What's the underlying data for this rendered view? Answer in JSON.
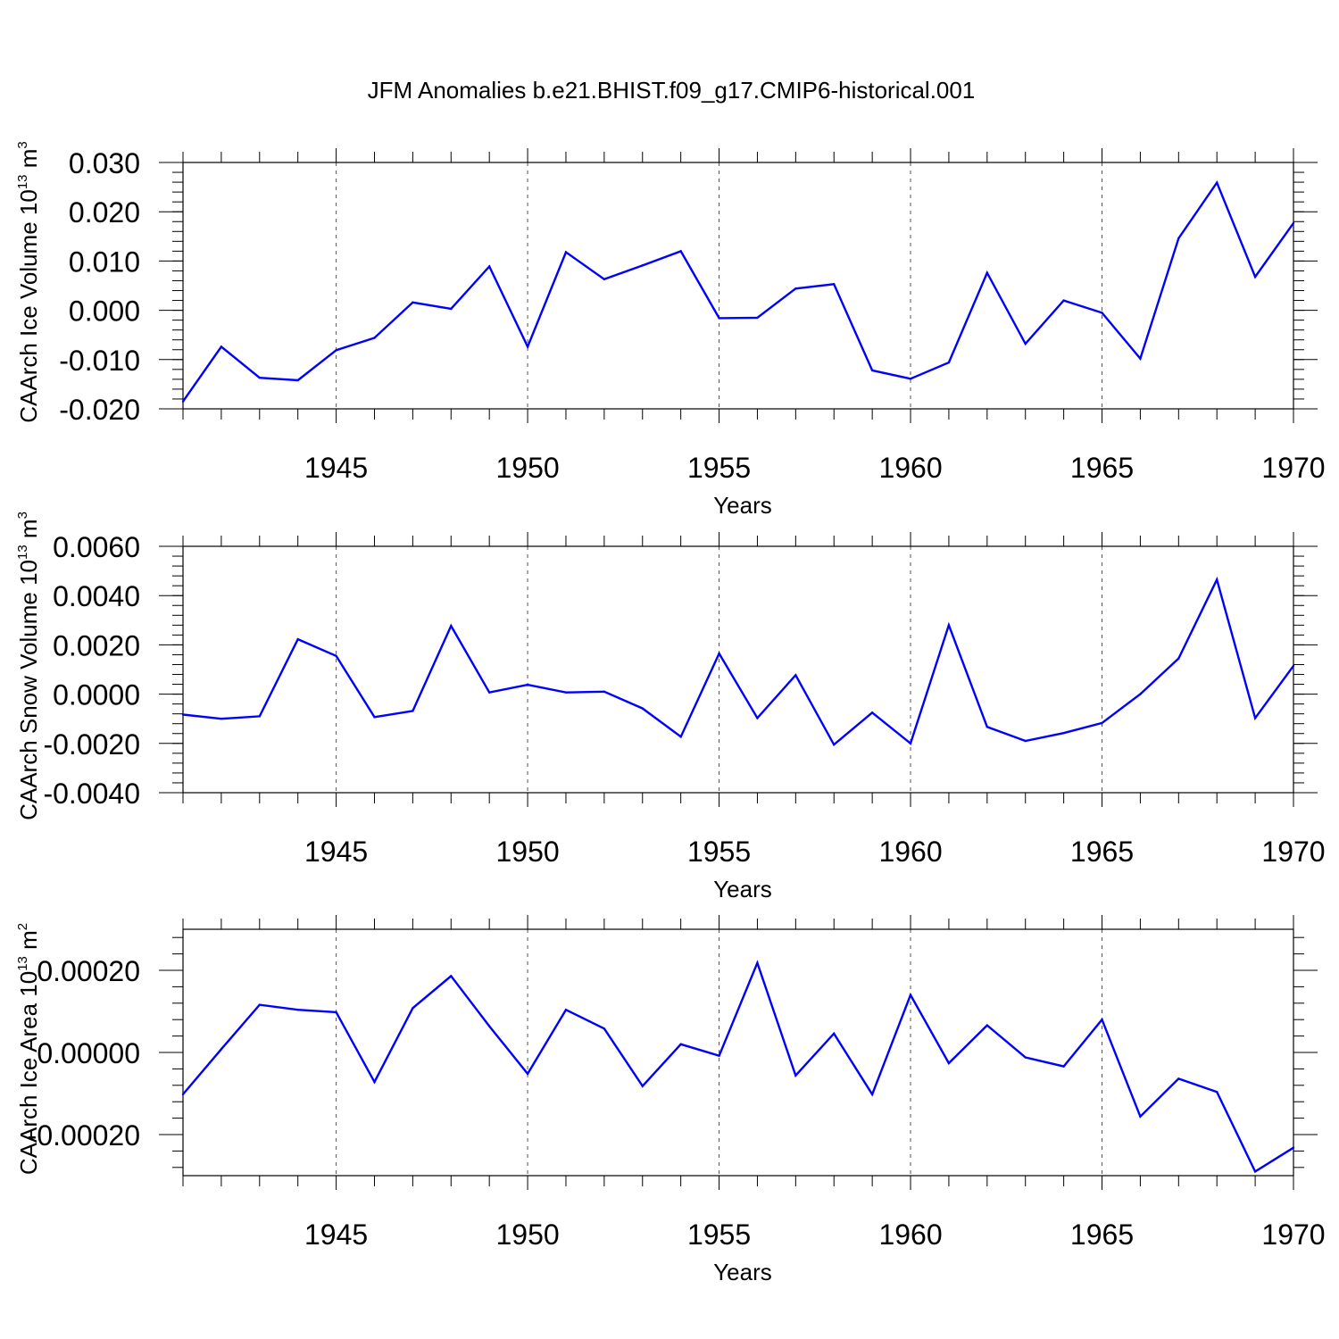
{
  "title": "JFM Anomalies b.e21.BHIST.f09_g17.CMIP6-historical.001",
  "colors": {
    "line": "#0000ff",
    "axis": "#000000",
    "grid": "#555555"
  },
  "chart_data": [
    {
      "type": "line",
      "ylabel": "CAArch Ice Volume 10",
      "ylabel_sup": "13",
      "ylabel_unit": " m",
      "ylabel_unit_sup": "3",
      "xlabel": "Years",
      "xlim": [
        1941,
        1970
      ],
      "ylim": [
        -0.02,
        0.03
      ],
      "yticks": [
        -0.02,
        -0.01,
        0.0,
        0.01,
        0.02,
        0.03
      ],
      "ytick_labels": [
        "-0.020",
        "-0.010",
        "0.000",
        "0.010",
        "0.020",
        "0.030"
      ],
      "yminor_step": 0.002,
      "xticks": [
        1945,
        1950,
        1955,
        1960,
        1965,
        1970
      ],
      "xtick_labels": [
        "1945",
        "1950",
        "1955",
        "1960",
        "1965",
        "1970"
      ],
      "grid_x": [
        1945,
        1950,
        1955,
        1960,
        1965
      ],
      "series": [
        {
          "name": "CAArch Ice Volume",
          "x": [
            1941,
            1942,
            1943,
            1944,
            1945,
            1946,
            1947,
            1948,
            1949,
            1950,
            1951,
            1952,
            1953,
            1954,
            1955,
            1956,
            1957,
            1958,
            1959,
            1960,
            1961,
            1962,
            1963,
            1964,
            1965,
            1966,
            1967,
            1968,
            1969,
            1970
          ],
          "y": [
            -0.0185,
            -0.0074,
            -0.0137,
            -0.0142,
            -0.0081,
            -0.0056,
            0.0016,
            0.0003,
            0.0089,
            -0.0074,
            0.0118,
            0.0063,
            0.0091,
            0.012,
            -0.0016,
            -0.0015,
            0.0044,
            0.0053,
            -0.0122,
            -0.0139,
            -0.0106,
            0.0076,
            -0.0068,
            0.002,
            -0.0005,
            -0.0098,
            0.0146,
            0.0259,
            0.0068,
            0.0177
          ]
        }
      ]
    },
    {
      "type": "line",
      "ylabel": "CAArch Snow Volume 10",
      "ylabel_sup": "13",
      "ylabel_unit": " m",
      "ylabel_unit_sup": "3",
      "xlabel": "Years",
      "xlim": [
        1941,
        1970
      ],
      "ylim": [
        -0.004,
        0.006
      ],
      "yticks": [
        -0.004,
        -0.002,
        0.0,
        0.002,
        0.004,
        0.006
      ],
      "ytick_labels": [
        "-0.0040",
        "-0.0020",
        "0.0000",
        "0.0020",
        "0.0040",
        "0.0060"
      ],
      "yminor_step": 0.0004,
      "xticks": [
        1945,
        1950,
        1955,
        1960,
        1965,
        1970
      ],
      "xtick_labels": [
        "1945",
        "1950",
        "1955",
        "1960",
        "1965",
        "1970"
      ],
      "grid_x": [
        1945,
        1950,
        1955,
        1960,
        1965
      ],
      "series": [
        {
          "name": "CAArch Snow Volume",
          "x": [
            1941,
            1942,
            1943,
            1944,
            1945,
            1946,
            1947,
            1948,
            1949,
            1950,
            1951,
            1952,
            1953,
            1954,
            1955,
            1956,
            1957,
            1958,
            1959,
            1960,
            1961,
            1962,
            1963,
            1964,
            1965,
            1966,
            1967,
            1968,
            1969,
            1970
          ],
          "y": [
            -0.00083,
            -0.001,
            -0.0009,
            0.00223,
            0.00155,
            -0.00093,
            -0.00068,
            0.00277,
            7e-05,
            0.00038,
            7e-05,
            0.0001,
            -0.00058,
            -0.00173,
            0.00165,
            -0.00097,
            0.00077,
            -0.00205,
            -0.00075,
            -0.002,
            0.0028,
            -0.00133,
            -0.0019,
            -0.00158,
            -0.00117,
            0.0,
            0.00145,
            0.00465,
            -0.00097,
            0.00115
          ]
        }
      ]
    },
    {
      "type": "line",
      "ylabel": "CAArch Ice Area 10",
      "ylabel_sup": "13",
      "ylabel_unit": " m",
      "ylabel_unit_sup": "2",
      "xlabel": "Years",
      "xlim": [
        1941,
        1970
      ],
      "ylim": [
        -0.0003,
        0.0003
      ],
      "yticks": [
        -0.0002,
        0.0,
        0.0002
      ],
      "ytick_labels": [
        "-0.00020",
        "0.00000",
        "0.00020"
      ],
      "yminor_step": 4e-05,
      "xticks": [
        1945,
        1950,
        1955,
        1960,
        1965,
        1970
      ],
      "xtick_labels": [
        "1945",
        "1950",
        "1955",
        "1960",
        "1965",
        "1970"
      ],
      "grid_x": [
        1945,
        1950,
        1955,
        1960,
        1965
      ],
      "series": [
        {
          "name": "CAArch Ice Area",
          "x": [
            1941,
            1942,
            1943,
            1944,
            1945,
            1946,
            1947,
            1948,
            1949,
            1950,
            1951,
            1952,
            1953,
            1954,
            1955,
            1956,
            1957,
            1958,
            1959,
            1960,
            1961,
            1962,
            1963,
            1964,
            1965,
            1966,
            1967,
            1968,
            1969,
            1970
          ],
          "y": [
            -0.000102,
            8e-06,
            0.000116,
            0.000104,
            9.8e-05,
            -7.2e-05,
            0.000108,
            0.000186,
            6.4e-05,
            -5.2e-05,
            0.000104,
            5.8e-05,
            -8.2e-05,
            2e-05,
            -8e-06,
            0.000218,
            -5.6e-05,
            4.6e-05,
            -0.000102,
            0.00014,
            -2.6e-05,
            6.6e-05,
            -1.2e-05,
            -3.4e-05,
            8e-05,
            -0.000156,
            -6.4e-05,
            -9.6e-05,
            -0.00029,
            -0.000232
          ]
        }
      ]
    }
  ]
}
